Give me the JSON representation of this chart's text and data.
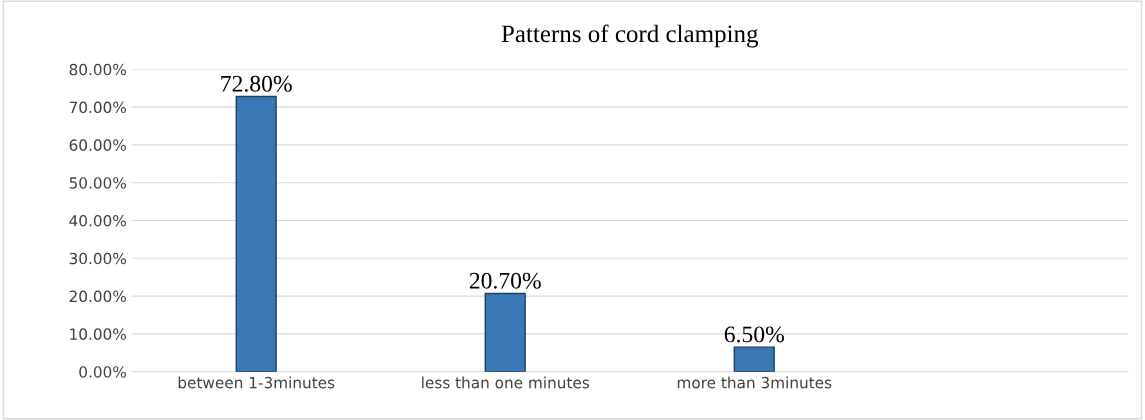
{
  "chart_data": {
    "type": "bar",
    "title": "Patterns of cord clamping",
    "categories": [
      "between 1-3minutes",
      "less than one minutes",
      "more than 3minutes",
      null
    ],
    "values": [
      72.8,
      20.7,
      6.5,
      null
    ],
    "value_labels": [
      "72.80%",
      "20.70%",
      "6.50%",
      null
    ],
    "color": "#3a78b5",
    "ylim": [
      0,
      80
    ],
    "yticks": [
      {
        "value": 0,
        "label": "0.00%"
      },
      {
        "value": 10,
        "label": "10.00%"
      },
      {
        "value": 20,
        "label": "20.00%"
      },
      {
        "value": 30,
        "label": "30.00%"
      },
      {
        "value": 40,
        "label": "40.00%"
      },
      {
        "value": 50,
        "label": "50.00%"
      },
      {
        "value": 60,
        "label": "60.00%"
      },
      {
        "value": 70,
        "label": "70.00%"
      },
      {
        "value": 80,
        "label": "80.00%"
      }
    ],
    "grid": "y",
    "legend": false
  }
}
